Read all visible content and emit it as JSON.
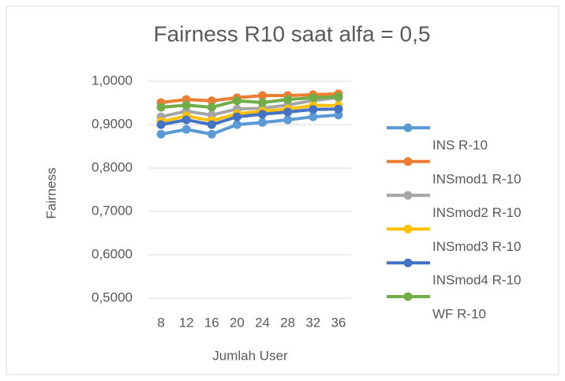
{
  "chart_data": {
    "type": "line",
    "title": "Fairness R10 saat alfa = 0,5",
    "x_label": "Jumlah User",
    "y_label": "Fairness",
    "categories": [
      "8",
      "12",
      "16",
      "20",
      "24",
      "28",
      "32",
      "36"
    ],
    "ylim": [
      0.5,
      1.0
    ],
    "yticks": [
      {
        "value": 0.5,
        "label": "0,5000"
      },
      {
        "value": 0.6,
        "label": "0,6000"
      },
      {
        "value": 0.7,
        "label": "0,7000"
      },
      {
        "value": 0.8,
        "label": "0,8000"
      },
      {
        "value": 0.9,
        "label": "0,9000"
      },
      {
        "value": 1.0,
        "label": "1,0000"
      }
    ],
    "grid": true,
    "legend": "right",
    "series": [
      {
        "name": "INS R-10",
        "color": "#5b9bd5",
        "values": [
          0.878,
          0.889,
          0.878,
          0.9,
          0.905,
          0.911,
          0.918,
          0.922
        ]
      },
      {
        "name": "INSmod1 R-10",
        "color": "#ed7d31",
        "values": [
          0.951,
          0.958,
          0.955,
          0.962,
          0.967,
          0.967,
          0.969,
          0.971
        ]
      },
      {
        "name": "INSmod2 R-10",
        "color": "#a5a5a5",
        "values": [
          0.918,
          0.931,
          0.922,
          0.936,
          0.938,
          0.945,
          0.956,
          0.962
        ]
      },
      {
        "name": "INSmod3 R-10",
        "color": "#ffc000",
        "values": [
          0.907,
          0.92,
          0.909,
          0.925,
          0.931,
          0.936,
          0.944,
          0.944
        ]
      },
      {
        "name": "INSmod4 R-10",
        "color": "#4472c4",
        "values": [
          0.9,
          0.911,
          0.9,
          0.918,
          0.924,
          0.929,
          0.935,
          0.936
        ]
      },
      {
        "name": "WF R-10",
        "color": "#70ad47",
        "values": [
          0.94,
          0.945,
          0.94,
          0.955,
          0.951,
          0.958,
          0.962,
          0.964
        ]
      }
    ]
  }
}
